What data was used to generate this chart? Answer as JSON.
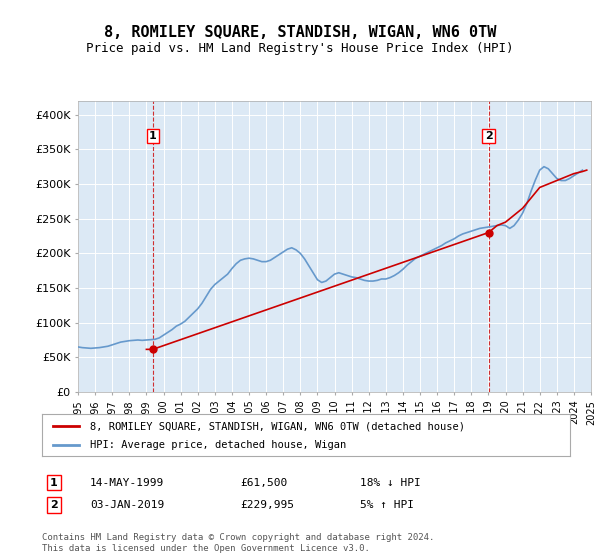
{
  "title": "8, ROMILEY SQUARE, STANDISH, WIGAN, WN6 0TW",
  "subtitle": "Price paid vs. HM Land Registry's House Price Index (HPI)",
  "bg_color": "#dce9f5",
  "plot_bg_color": "#dce9f5",
  "line1_color": "#cc0000",
  "line2_color": "#6699cc",
  "ylim": [
    0,
    420000
  ],
  "yticks": [
    0,
    50000,
    100000,
    150000,
    200000,
    250000,
    300000,
    350000,
    400000
  ],
  "ytick_labels": [
    "£0",
    "£50K",
    "£100K",
    "£150K",
    "£200K",
    "£250K",
    "£300K",
    "£350K",
    "£400K"
  ],
  "legend_label1": "8, ROMILEY SQUARE, STANDISH, WIGAN, WN6 0TW (detached house)",
  "legend_label2": "HPI: Average price, detached house, Wigan",
  "marker1_date": 1999.37,
  "marker1_price": 61500,
  "marker1_label": "1",
  "marker2_date": 2019.01,
  "marker2_price": 229995,
  "marker2_label": "2",
  "annotation1_date": "14-MAY-1999",
  "annotation1_price": "£61,500",
  "annotation1_pct": "18% ↓ HPI",
  "annotation2_date": "03-JAN-2019",
  "annotation2_price": "£229,995",
  "annotation2_pct": "5% ↑ HPI",
  "footer": "Contains HM Land Registry data © Crown copyright and database right 2024.\nThis data is licensed under the Open Government Licence v3.0.",
  "hpi_data_x": [
    1995.0,
    1995.25,
    1995.5,
    1995.75,
    1996.0,
    1996.25,
    1996.5,
    1996.75,
    1997.0,
    1997.25,
    1997.5,
    1997.75,
    1998.0,
    1998.25,
    1998.5,
    1998.75,
    1999.0,
    1999.25,
    1999.5,
    1999.75,
    2000.0,
    2000.25,
    2000.5,
    2000.75,
    2001.0,
    2001.25,
    2001.5,
    2001.75,
    2002.0,
    2002.25,
    2002.5,
    2002.75,
    2003.0,
    2003.25,
    2003.5,
    2003.75,
    2004.0,
    2004.25,
    2004.5,
    2004.75,
    2005.0,
    2005.25,
    2005.5,
    2005.75,
    2006.0,
    2006.25,
    2006.5,
    2006.75,
    2007.0,
    2007.25,
    2007.5,
    2007.75,
    2008.0,
    2008.25,
    2008.5,
    2008.75,
    2009.0,
    2009.25,
    2009.5,
    2009.75,
    2010.0,
    2010.25,
    2010.5,
    2010.75,
    2011.0,
    2011.25,
    2011.5,
    2011.75,
    2012.0,
    2012.25,
    2012.5,
    2012.75,
    2013.0,
    2013.25,
    2013.5,
    2013.75,
    2014.0,
    2014.25,
    2014.5,
    2014.75,
    2015.0,
    2015.25,
    2015.5,
    2015.75,
    2016.0,
    2016.25,
    2016.5,
    2016.75,
    2017.0,
    2017.25,
    2017.5,
    2017.75,
    2018.0,
    2018.25,
    2018.5,
    2018.75,
    2019.0,
    2019.25,
    2019.5,
    2019.75,
    2020.0,
    2020.25,
    2020.5,
    2020.75,
    2021.0,
    2021.25,
    2021.5,
    2021.75,
    2022.0,
    2022.25,
    2022.5,
    2022.75,
    2023.0,
    2023.25,
    2023.5,
    2023.75,
    2024.0,
    2024.25,
    2024.5
  ],
  "hpi_data_y": [
    65000,
    64000,
    63500,
    63000,
    63500,
    64000,
    65000,
    66000,
    68000,
    70000,
    72000,
    73000,
    74000,
    74500,
    75000,
    74500,
    75000,
    75500,
    76000,
    78000,
    82000,
    86000,
    90000,
    95000,
    98000,
    102000,
    108000,
    114000,
    120000,
    128000,
    138000,
    148000,
    155000,
    160000,
    165000,
    170000,
    178000,
    185000,
    190000,
    192000,
    193000,
    192000,
    190000,
    188000,
    188000,
    190000,
    194000,
    198000,
    202000,
    206000,
    208000,
    205000,
    200000,
    192000,
    182000,
    172000,
    162000,
    158000,
    160000,
    165000,
    170000,
    172000,
    170000,
    168000,
    166000,
    165000,
    163000,
    161000,
    160000,
    160000,
    161000,
    163000,
    163000,
    165000,
    168000,
    172000,
    177000,
    183000,
    188000,
    193000,
    196000,
    199000,
    202000,
    205000,
    208000,
    211000,
    215000,
    218000,
    221000,
    225000,
    228000,
    230000,
    232000,
    234000,
    236000,
    237000,
    238000,
    239000,
    240000,
    241000,
    240000,
    236000,
    240000,
    248000,
    258000,
    272000,
    290000,
    306000,
    320000,
    325000,
    322000,
    315000,
    308000,
    305000,
    305000,
    308000,
    312000,
    316000,
    320000
  ],
  "sale_data_x": [
    1999.0,
    1999.37,
    2019.01,
    2019.5,
    2020.0,
    2021.0,
    2021.5,
    2022.0,
    2022.5,
    2023.0,
    2023.5,
    2024.0,
    2024.5,
    2024.75
  ],
  "sale_data_y": [
    61500,
    61500,
    229995,
    240000,
    245000,
    265000,
    280000,
    295000,
    300000,
    305000,
    310000,
    315000,
    318000,
    320000
  ]
}
